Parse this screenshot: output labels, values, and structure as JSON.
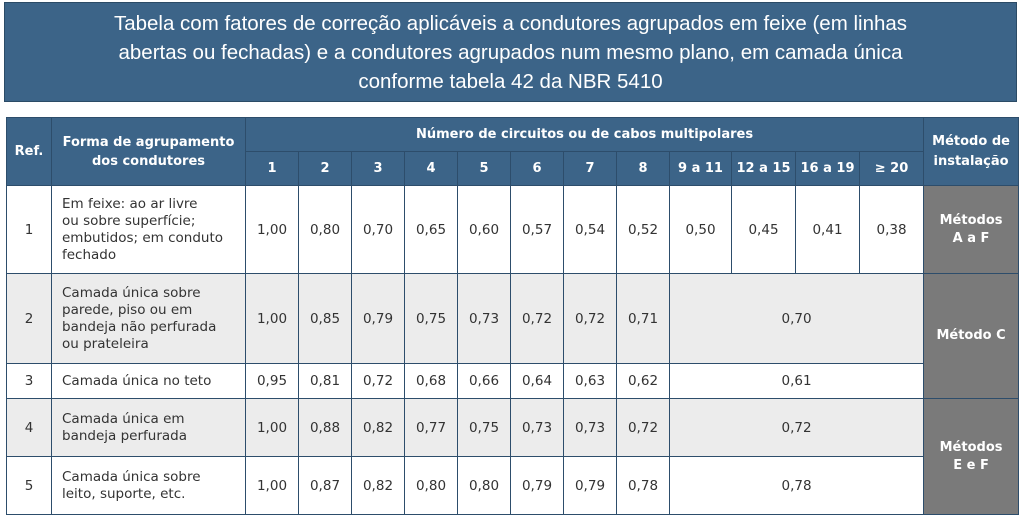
{
  "title": {
    "line1": "Tabela com fatores de correção aplicáveis a condutores agrupados em feixe (em linhas",
    "line2": "abertas ou fechadas) e a condutores agrupados num mesmo plano, em camada única",
    "line3": "conforme tabela 42 da NBR 5410"
  },
  "headers": {
    "ref": "Ref.",
    "forma_line1": "Forma de agrupamento",
    "forma_line2": "dos condutores",
    "numero": "Número de circuitos ou de cabos multipolares",
    "metodo_line1": "Método de",
    "metodo_line2": "instalação",
    "cols": [
      "1",
      "2",
      "3",
      "4",
      "5",
      "6",
      "7",
      "8",
      "9 a 11",
      "12 a 15",
      "16 a 19",
      "≥ 20"
    ]
  },
  "rows": [
    {
      "ref": "1",
      "desc": [
        "Em feixe: ao ar livre",
        "ou sobre superfície;",
        "embutidos; em conduto",
        "fechado"
      ],
      "values": [
        "1,00",
        "0,80",
        "0,70",
        "0,65",
        "0,60",
        "0,57",
        "0,54",
        "0,52",
        "0,50",
        "0,45",
        "0,41",
        "0,38"
      ]
    },
    {
      "ref": "2",
      "desc": [
        "Camada única sobre",
        "parede, piso ou em",
        "bandeja não perfurada",
        "ou prateleira"
      ],
      "values": [
        "1,00",
        "0,85",
        "0,79",
        "0,75",
        "0,73",
        "0,72",
        "0,72",
        "0,71"
      ],
      "merged": "0,70"
    },
    {
      "ref": "3",
      "desc": [
        "Camada única no teto"
      ],
      "values": [
        "0,95",
        "0,81",
        "0,72",
        "0,68",
        "0,66",
        "0,64",
        "0,63",
        "0,62"
      ],
      "merged": "0,61"
    },
    {
      "ref": "4",
      "desc": [
        "Camada única em",
        "bandeja perfurada"
      ],
      "values": [
        "1,00",
        "0,88",
        "0,82",
        "0,77",
        "0,75",
        "0,73",
        "0,73",
        "0,72"
      ],
      "merged": "0,72"
    },
    {
      "ref": "5",
      "desc": [
        "Camada única sobre",
        "leito, suporte, etc."
      ],
      "values": [
        "1,00",
        "0,87",
        "0,82",
        "0,80",
        "0,80",
        "0,79",
        "0,79",
        "0,78"
      ],
      "merged": "0,78"
    }
  ],
  "methods": {
    "m1_line1": "Métodos",
    "m1_line2": "A a F",
    "m2": "Método C",
    "m3_line1": "Métodos",
    "m3_line2": "E e F"
  }
}
